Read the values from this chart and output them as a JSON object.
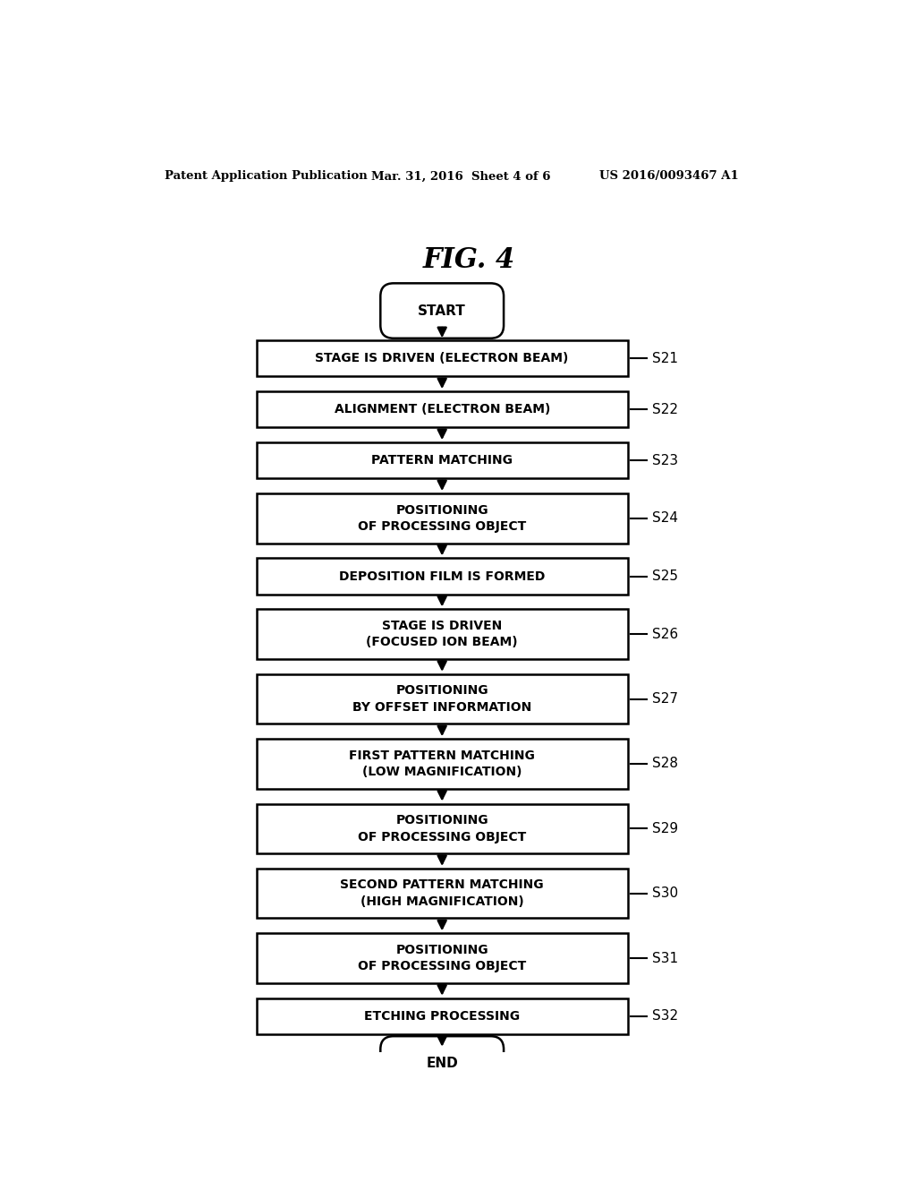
{
  "title": "FIG. 4",
  "header_left": "Patent Application Publication",
  "header_mid": "Mar. 31, 2016  Sheet 4 of 6",
  "header_right": "US 2016/0093467 A1",
  "background_color": "#ffffff",
  "text_color": "#000000",
  "box_color": "#ffffff",
  "box_edge_color": "#000000",
  "arrow_color": "#000000",
  "steps": [
    {
      "id": "start",
      "type": "oval",
      "text": "START",
      "label": ""
    },
    {
      "id": "s21",
      "type": "rect",
      "text": "STAGE IS DRIVEN (ELECTRON BEAM)",
      "label": "S21"
    },
    {
      "id": "s22",
      "type": "rect",
      "text": "ALIGNMENT (ELECTRON BEAM)",
      "label": "S22"
    },
    {
      "id": "s23",
      "type": "rect",
      "text": "PATTERN MATCHING",
      "label": "S23"
    },
    {
      "id": "s24",
      "type": "rect",
      "text": "POSITIONING\nOF PROCESSING OBJECT",
      "label": "S24"
    },
    {
      "id": "s25",
      "type": "rect",
      "text": "DEPOSITION FILM IS FORMED",
      "label": "S25"
    },
    {
      "id": "s26",
      "type": "rect",
      "text": "STAGE IS DRIVEN\n(FOCUSED ION BEAM)",
      "label": "S26"
    },
    {
      "id": "s27",
      "type": "rect",
      "text": "POSITIONING\nBY OFFSET INFORMATION",
      "label": "S27"
    },
    {
      "id": "s28",
      "type": "rect",
      "text": "FIRST PATTERN MATCHING\n(LOW MAGNIFICATION)",
      "label": "S28"
    },
    {
      "id": "s29",
      "type": "rect",
      "text": "POSITIONING\nOF PROCESSING OBJECT",
      "label": "S29"
    },
    {
      "id": "s30",
      "type": "rect",
      "text": "SECOND PATTERN MATCHING\n(HIGH MAGNIFICATION)",
      "label": "S30"
    },
    {
      "id": "s31",
      "type": "rect",
      "text": "POSITIONING\nOF PROCESSING OBJECT",
      "label": "S31"
    },
    {
      "id": "s32",
      "type": "rect",
      "text": "ETCHING PROCESSING",
      "label": "S32"
    },
    {
      "id": "end",
      "type": "oval",
      "text": "END",
      "label": ""
    }
  ]
}
